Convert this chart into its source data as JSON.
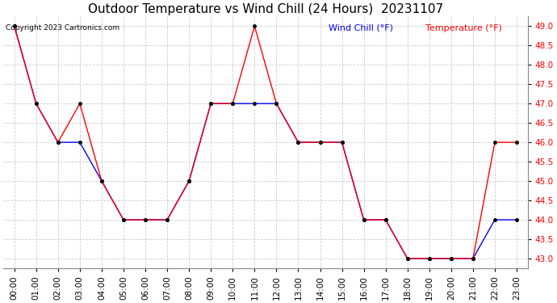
{
  "title": "Outdoor Temperature vs Wind Chill (24 Hours)  20231107",
  "copyright": "Copyright 2023 Cartronics.com",
  "legend_wind_chill": "Wind Chill (°F)",
  "legend_temperature": "Temperature (°F)",
  "x_labels": [
    "00:00",
    "01:00",
    "02:00",
    "03:00",
    "04:00",
    "05:00",
    "06:00",
    "07:00",
    "08:00",
    "09:00",
    "10:00",
    "11:00",
    "12:00",
    "13:00",
    "14:00",
    "15:00",
    "16:00",
    "17:00",
    "18:00",
    "19:00",
    "20:00",
    "21:00",
    "22:00",
    "23:00"
  ],
  "temperature": [
    49.0,
    47.0,
    46.0,
    47.0,
    45.0,
    44.0,
    44.0,
    44.0,
    45.0,
    47.0,
    47.0,
    49.0,
    47.0,
    46.0,
    46.0,
    46.0,
    44.0,
    44.0,
    43.0,
    43.0,
    43.0,
    43.0,
    46.0,
    46.0
  ],
  "wind_chill": [
    49.0,
    47.0,
    46.0,
    46.0,
    45.0,
    44.0,
    44.0,
    44.0,
    45.0,
    47.0,
    47.0,
    47.0,
    47.0,
    46.0,
    46.0,
    46.0,
    44.0,
    44.0,
    43.0,
    43.0,
    43.0,
    43.0,
    44.0,
    44.0
  ],
  "ylim": [
    42.75,
    49.25
  ],
  "yticks": [
    43.0,
    43.5,
    44.0,
    44.5,
    45.0,
    45.5,
    46.0,
    46.5,
    47.0,
    47.5,
    48.0,
    48.5,
    49.0
  ],
  "temp_color": "red",
  "wind_chill_color": "blue",
  "bg_color": "white",
  "grid_color": "#cccccc",
  "title_color": "black",
  "copyright_color": "black",
  "title_fontsize": 11,
  "tick_fontsize": 7.5,
  "figwidth": 6.9,
  "figheight": 3.75,
  "dpi": 100
}
